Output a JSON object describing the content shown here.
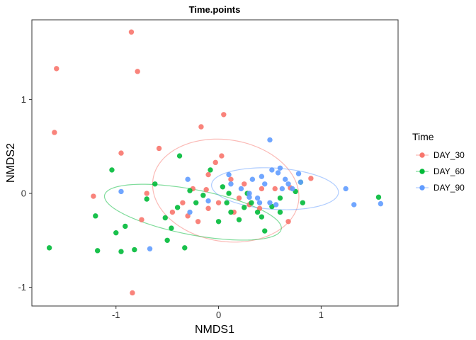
{
  "chart_data": {
    "type": "scatter",
    "title": "Time.points",
    "xlabel": "NMDS1",
    "ylabel": "NMDS2",
    "xlim": [
      -1.82,
      1.75
    ],
    "ylim": [
      -1.2,
      1.85
    ],
    "x_ticks": [
      -1,
      0,
      1
    ],
    "y_ticks": [
      -1,
      0,
      1
    ],
    "grid": false,
    "legend": {
      "title": "Time",
      "placement": "right"
    },
    "series": [
      {
        "name": "DAY_30",
        "color": "#F8766D",
        "ellipse": {
          "cx": 0.07,
          "cy": 0.03,
          "rx": 0.72,
          "ry": 0.54,
          "angle": -12
        },
        "points": [
          [
            -0.85,
            1.72
          ],
          [
            -1.58,
            1.33
          ],
          [
            -0.79,
            1.3
          ],
          [
            -1.6,
            0.65
          ],
          [
            -0.95,
            0.43
          ],
          [
            -0.58,
            0.48
          ],
          [
            -1.22,
            -0.03
          ],
          [
            -0.84,
            -1.06
          ],
          [
            -0.75,
            -0.28
          ],
          [
            -0.17,
            0.71
          ],
          [
            0.05,
            0.84
          ],
          [
            -0.03,
            0.33
          ],
          [
            0.03,
            0.4
          ],
          [
            -0.1,
            0.2
          ],
          [
            0.12,
            0.15
          ],
          [
            -0.25,
            0.05
          ],
          [
            -0.35,
            -0.1
          ],
          [
            -0.2,
            -0.3
          ],
          [
            -0.1,
            -0.16
          ],
          [
            0.0,
            -0.1
          ],
          [
            0.25,
            0.1
          ],
          [
            0.2,
            -0.05
          ],
          [
            0.3,
            -0.12
          ],
          [
            0.4,
            -0.16
          ],
          [
            0.55,
            0.05
          ],
          [
            0.68,
            -0.3
          ],
          [
            0.9,
            0.16
          ],
          [
            -0.7,
            0.0
          ],
          [
            -0.45,
            -0.2
          ],
          [
            -0.3,
            -0.24
          ],
          [
            -0.12,
            0.04
          ],
          [
            0.42,
            0.05
          ],
          [
            0.15,
            -0.2
          ],
          [
            0.7,
            0.06
          ]
        ]
      },
      {
        "name": "DAY_60",
        "color": "#00BA38",
        "ellipse": {
          "cx": -0.25,
          "cy": -0.2,
          "rx": 0.88,
          "ry": 0.24,
          "angle": -12
        },
        "points": [
          [
            -1.65,
            -0.58
          ],
          [
            -1.18,
            -0.61
          ],
          [
            -1.2,
            -0.24
          ],
          [
            -1.04,
            0.25
          ],
          [
            -1.0,
            -0.42
          ],
          [
            -0.95,
            -0.62
          ],
          [
            -0.91,
            -0.35
          ],
          [
            -0.82,
            -0.6
          ],
          [
            -0.7,
            -0.06
          ],
          [
            -0.62,
            0.1
          ],
          [
            -0.52,
            -0.26
          ],
          [
            -0.5,
            -0.5
          ],
          [
            -0.46,
            -0.37
          ],
          [
            -0.4,
            -0.15
          ],
          [
            -0.38,
            0.4
          ],
          [
            -0.33,
            -0.58
          ],
          [
            -0.22,
            -0.1
          ],
          [
            -0.15,
            -0.02
          ],
          [
            -0.08,
            0.25
          ],
          [
            0.04,
            0.07
          ],
          [
            0.08,
            -0.1
          ],
          [
            0.12,
            -0.2
          ],
          [
            0.2,
            -0.28
          ],
          [
            0.25,
            -0.15
          ],
          [
            0.32,
            -0.1
          ],
          [
            0.38,
            -0.2
          ],
          [
            0.45,
            -0.4
          ],
          [
            0.52,
            -0.14
          ],
          [
            0.6,
            -0.2
          ],
          [
            0.75,
            0.02
          ],
          [
            0.8,
            0.12
          ],
          [
            0.82,
            -0.1
          ],
          [
            1.56,
            -0.04
          ],
          [
            0.28,
            0.0
          ],
          [
            0.42,
            -0.25
          ],
          [
            -0.28,
            0.03
          ],
          [
            0.0,
            -0.3
          ],
          [
            0.1,
            0.0
          ],
          [
            0.6,
            -0.05
          ]
        ]
      },
      {
        "name": "DAY_90",
        "color": "#619CFF",
        "ellipse": {
          "cx": 0.55,
          "cy": 0.05,
          "rx": 0.62,
          "ry": 0.22,
          "angle": -4
        },
        "points": [
          [
            -0.95,
            0.02
          ],
          [
            -0.67,
            -0.59
          ],
          [
            -0.3,
            0.15
          ],
          [
            -0.28,
            -0.2
          ],
          [
            -0.1,
            -0.08
          ],
          [
            0.1,
            0.2
          ],
          [
            0.12,
            0.1
          ],
          [
            0.22,
            0.05
          ],
          [
            0.3,
            0.0
          ],
          [
            0.33,
            0.15
          ],
          [
            0.38,
            -0.05
          ],
          [
            0.42,
            0.18
          ],
          [
            0.45,
            0.1
          ],
          [
            0.5,
            -0.1
          ],
          [
            0.52,
            0.25
          ],
          [
            0.58,
            0.22
          ],
          [
            0.6,
            0.27
          ],
          [
            0.62,
            0.05
          ],
          [
            0.65,
            0.15
          ],
          [
            0.68,
            0.1
          ],
          [
            0.72,
            0.05
          ],
          [
            0.78,
            0.21
          ],
          [
            0.8,
            0.12
          ],
          [
            0.5,
            0.57
          ],
          [
            1.24,
            0.05
          ],
          [
            1.32,
            -0.12
          ],
          [
            1.58,
            -0.11
          ],
          [
            0.4,
            -0.1
          ],
          [
            0.56,
            -0.12
          ],
          [
            0.3,
            -0.04
          ]
        ]
      }
    ]
  }
}
